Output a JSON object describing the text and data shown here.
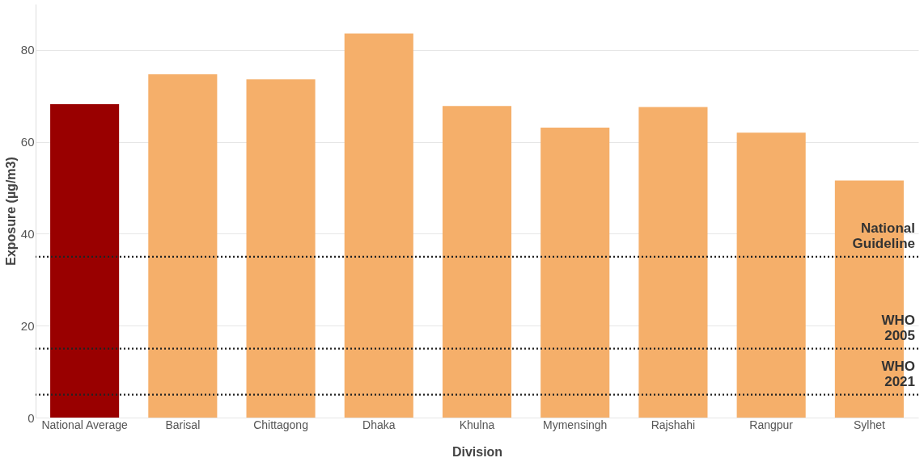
{
  "chart_data": {
    "type": "bar",
    "xlabel": "Division",
    "ylabel": "Exposure (µg/m3)",
    "categories": [
      "National Average",
      "Barisal",
      "Chittagong",
      "Dhaka",
      "Khulna",
      "Mymensingh",
      "Rajshahi",
      "Rangpur",
      "Sylhet"
    ],
    "values": [
      68.2,
      74.7,
      73.6,
      83.6,
      67.8,
      63.1,
      67.6,
      62.0,
      51.6
    ],
    "colors": [
      "#990000",
      "#f5af6a",
      "#f5af6a",
      "#f5af6a",
      "#f5af6a",
      "#f5af6a",
      "#f5af6a",
      "#f5af6a",
      "#f5af6a"
    ],
    "ylim": [
      0,
      90
    ],
    "yticks": [
      0,
      20,
      40,
      60,
      80
    ],
    "grid": "y",
    "ref_lines": [
      {
        "axis": "y",
        "value": 35,
        "label": "National Guideline",
        "color": "#222222",
        "line_style": "dotted"
      },
      {
        "axis": "y",
        "value": 15,
        "label": "WHO 2005",
        "color": "#222222",
        "line_style": "dotted"
      },
      {
        "axis": "y",
        "value": 5,
        "label": "WHO 2021",
        "color": "#222222",
        "line_style": "dotted"
      }
    ]
  }
}
